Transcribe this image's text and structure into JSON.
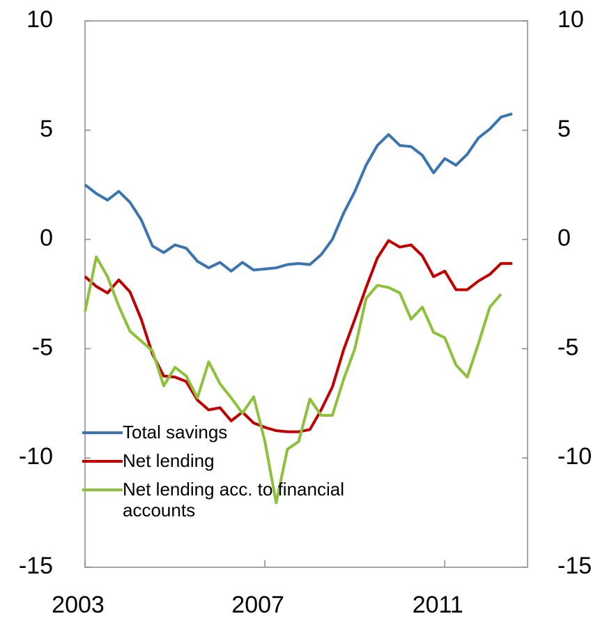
{
  "chart_data": {
    "type": "line",
    "x": [
      2003,
      2003.25,
      2003.5,
      2003.75,
      2004,
      2004.25,
      2004.5,
      2004.75,
      2005,
      2005.25,
      2005.5,
      2005.75,
      2006,
      2006.25,
      2006.5,
      2006.75,
      2007,
      2007.25,
      2007.5,
      2007.75,
      2008,
      2008.25,
      2008.5,
      2008.75,
      2009,
      2009.25,
      2009.5,
      2009.75,
      2010,
      2010.25,
      2010.5,
      2010.75,
      2011,
      2011.25,
      2011.5,
      2011.75,
      2012,
      2012.25,
      2012.5
    ],
    "series": [
      {
        "name": "Total savings",
        "color": "#3a75b0",
        "values": [
          2.5,
          2.1,
          1.8,
          2.2,
          1.7,
          0.9,
          -0.3,
          -0.6,
          -0.25,
          -0.4,
          -1.0,
          -1.3,
          -1.05,
          -1.45,
          -1.05,
          -1.4,
          -1.35,
          -1.3,
          -1.15,
          -1.1,
          -1.15,
          -0.7,
          0.0,
          1.2,
          2.2,
          3.4,
          4.3,
          4.8,
          4.3,
          4.25,
          3.85,
          3.05,
          3.7,
          3.4,
          3.9,
          4.65,
          5.05,
          5.6,
          5.75
        ]
      },
      {
        "name": "Net lending",
        "color": "#c00000",
        "values": [
          -1.7,
          -2.15,
          -2.45,
          -1.85,
          -2.4,
          -3.65,
          -5.25,
          -6.25,
          -6.3,
          -6.5,
          -7.35,
          -7.8,
          -7.7,
          -8.3,
          -7.9,
          -8.4,
          -8.6,
          -8.75,
          -8.8,
          -8.8,
          -8.7,
          -7.8,
          -6.75,
          -5.05,
          -3.65,
          -2.2,
          -0.85,
          -0.05,
          -0.35,
          -0.25,
          -0.75,
          -1.7,
          -1.45,
          -2.3,
          -2.3,
          -1.9,
          -1.6,
          -1.1,
          -1.1
        ]
      },
      {
        "name": "Net lending acc. to financial accounts",
        "color": "#8dc13c",
        "values": [
          -3.3,
          -0.8,
          -1.7,
          -3.05,
          -4.2,
          -4.65,
          -5.1,
          -6.7,
          -5.85,
          -6.25,
          -7.25,
          -5.6,
          -6.6,
          -7.25,
          -7.95,
          -7.2,
          -9.25,
          -12.05,
          -9.6,
          -9.25,
          -7.3,
          -8.05,
          -8.05,
          -6.4,
          -5.0,
          -2.7,
          -2.1,
          -2.2,
          -2.45,
          -3.65,
          -3.1,
          -4.25,
          -4.5,
          -5.75,
          -6.3,
          -4.75,
          -3.1,
          -2.5,
          null
        ]
      }
    ],
    "xlim": [
      2003,
      2012.84
    ],
    "xticks": [
      2003,
      2007,
      2011
    ],
    "ylim": [
      -15,
      10
    ],
    "yticks": [
      -15,
      -10,
      -5,
      0,
      5,
      10
    ],
    "y2lim": [
      -15,
      10
    ],
    "y2ticks": [
      -15,
      -10,
      -5,
      0,
      5,
      10
    ],
    "legend": "lower left"
  }
}
